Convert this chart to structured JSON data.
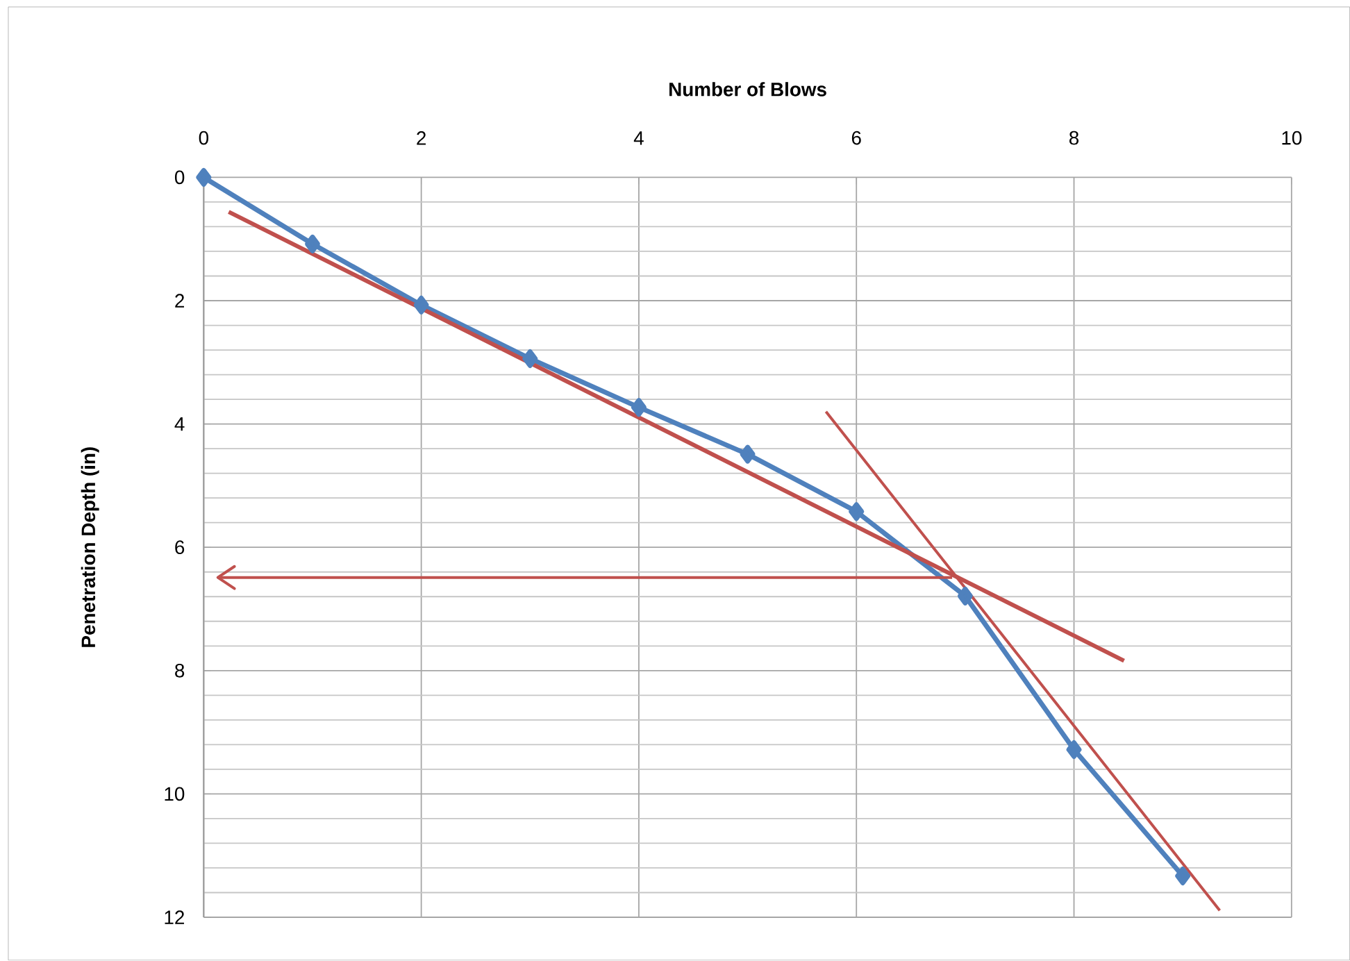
{
  "chart_data": {
    "type": "line",
    "xlabel": "Number of Blows",
    "ylabel": "Penetration Depth (in)",
    "xlim": [
      0,
      10
    ],
    "xticks": [
      0,
      2,
      4,
      6,
      8,
      10
    ],
    "ylim": [
      12,
      0
    ],
    "yticks": [
      0,
      2,
      4,
      6,
      8,
      10,
      12
    ],
    "grid": true,
    "line_style": "solid",
    "series": [
      {
        "color": "#4f81bd",
        "marker": "diamond",
        "x": [
          0,
          1,
          2,
          3,
          4,
          5,
          6,
          7,
          8,
          9
        ],
        "values": [
          0,
          1.08,
          2.07,
          2.94,
          3.73,
          4.49,
          5.42,
          6.79,
          9.28,
          11.33
        ]
      },
      {
        "color": "#c0504d",
        "marker": "none",
        "x": [
          0.23,
          8.46
        ],
        "values": [
          0.56,
          7.84
        ]
      },
      {
        "color": "#c0504d",
        "marker": "none",
        "x": [
          5.72,
          9.34
        ],
        "values": [
          3.8,
          11.89
        ]
      },
      {
        "color": "#c0504d",
        "marker": "none",
        "x": [
          6.88,
          0.13
        ],
        "values": [
          6.49,
          6.49
        ]
      }
    ]
  }
}
